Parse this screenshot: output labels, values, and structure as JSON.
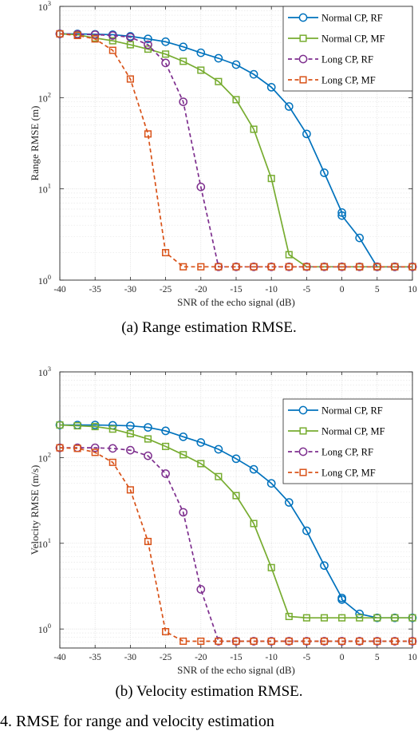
{
  "figure": {
    "caption_a": "(a)  Range estimation RMSE.",
    "caption_b": "(b)  Velocity estimation RMSE.",
    "bottom_text": "4.  RMSE  for  range  and  velocity  estimation"
  },
  "colors": {
    "normal_rf": "#0072BD",
    "normal_mf": "#77AC30",
    "long_rf": "#7E2F8E",
    "long_mf": "#D95319",
    "grid": "#dcdcdc"
  },
  "chart_data": [
    {
      "id": "range",
      "type": "line",
      "title": "",
      "xlabel": "SNR of the echo signal (dB)",
      "ylabel": "Range RMSE (m)",
      "xlim": [
        -40,
        10
      ],
      "ylim": [
        1,
        1000
      ],
      "yscale": "log",
      "grid": true,
      "legend_position": "top-right",
      "x_ticks": [
        -40,
        -35,
        -30,
        -25,
        -20,
        -15,
        -10,
        -5,
        0,
        5,
        10
      ],
      "x_tick_labels": [
        "-40",
        "-35",
        "-30",
        "-25",
        "-20",
        "-15",
        "-10",
        "-5",
        "0",
        "5",
        "10"
      ],
      "y_ticks": [
        1,
        10,
        100,
        1000
      ],
      "y_tick_labels": [
        [
          "10",
          "0"
        ],
        [
          "10",
          "1"
        ],
        [
          "10",
          "2"
        ],
        [
          "10",
          "3"
        ]
      ],
      "series": [
        {
          "name": "Normal CP, RF",
          "color_key": "normal_rf",
          "marker": "circle",
          "dash": false,
          "x": [
            -40,
            -37.5,
            -35,
            -32.5,
            -30,
            -27.5,
            -25,
            -22.5,
            -20,
            -17.5,
            -15,
            -12.5,
            -10,
            -7.5,
            -5,
            -2.5,
            0,
            0,
            2.5,
            5,
            7.5,
            10
          ],
          "y": [
            500,
            500,
            495,
            490,
            470,
            440,
            410,
            360,
            310,
            270,
            230,
            180,
            130,
            80,
            40,
            15,
            5.5,
            5.1,
            2.9,
            1.4,
            1.4,
            1.4
          ]
        },
        {
          "name": "Normal CP, MF",
          "color_key": "normal_mf",
          "marker": "square",
          "dash": false,
          "x": [
            -40,
            -37.5,
            -35,
            -32.5,
            -30,
            -27.5,
            -25,
            -22.5,
            -20,
            -17.5,
            -15,
            -12.5,
            -10,
            -7.5,
            -5,
            -2.5,
            0,
            2.5,
            5,
            7.5,
            10
          ],
          "y": [
            500,
            490,
            450,
            420,
            380,
            340,
            300,
            250,
            200,
            150,
            95,
            45,
            13,
            1.9,
            1.4,
            1.4,
            1.4,
            1.4,
            1.4,
            1.4,
            1.4
          ]
        },
        {
          "name": "Long CP, RF",
          "color_key": "long_rf",
          "marker": "circle",
          "dash": true,
          "x": [
            -40,
            -37.5,
            -35,
            -32.5,
            -30,
            -27.5,
            -25,
            -22.5,
            -20,
            -17.5,
            -15,
            -12.5,
            -10,
            -7.5,
            -5,
            -2.5,
            0,
            2.5,
            5,
            7.5,
            10
          ],
          "y": [
            500,
            495,
            490,
            480,
            460,
            380,
            240,
            90,
            10.5,
            1.4,
            1.4,
            1.4,
            1.4,
            1.4,
            1.4,
            1.4,
            1.4,
            1.4,
            1.4,
            1.4,
            1.4
          ]
        },
        {
          "name": "Long CP, MF",
          "color_key": "long_mf",
          "marker": "square",
          "dash": true,
          "x": [
            -40,
            -37.5,
            -35,
            -32.5,
            -30,
            -27.5,
            -25,
            -22.5,
            -20,
            -17.5,
            -15,
            -12.5,
            -10,
            -7.5,
            -5,
            -2.5,
            0,
            2.5,
            5,
            7.5,
            10
          ],
          "y": [
            500,
            480,
            440,
            330,
            160,
            40,
            2,
            1.4,
            1.4,
            1.4,
            1.4,
            1.4,
            1.4,
            1.4,
            1.4,
            1.4,
            1.4,
            1.4,
            1.4,
            1.4,
            1.4
          ]
        }
      ]
    },
    {
      "id": "velocity",
      "type": "line",
      "title": "",
      "xlabel": "SNR of the echo signal (dB)",
      "ylabel": "Velocity RMSE (m/s)",
      "xlim": [
        -40,
        10
      ],
      "ylim": [
        0.6,
        1000
      ],
      "yscale": "log",
      "grid": true,
      "legend_position": "top-right",
      "x_ticks": [
        -40,
        -35,
        -30,
        -25,
        -20,
        -15,
        -10,
        -5,
        0,
        5,
        10
      ],
      "x_tick_labels": [
        "-40",
        "-35",
        "-30",
        "-25",
        "-20",
        "-15",
        "-10",
        "-5",
        "0",
        "5",
        "10"
      ],
      "y_ticks": [
        1,
        10,
        100,
        1000
      ],
      "y_tick_labels": [
        [
          "10",
          "0"
        ],
        [
          "10",
          "1"
        ],
        [
          "10",
          "2"
        ],
        [
          "10",
          "3"
        ]
      ],
      "series": [
        {
          "name": "Normal CP, RF",
          "color_key": "normal_rf",
          "marker": "circle",
          "dash": false,
          "x": [
            -40,
            -37.5,
            -35,
            -32.5,
            -30,
            -27.5,
            -25,
            -22.5,
            -20,
            -17.5,
            -15,
            -12.5,
            -10,
            -7.5,
            -5,
            -2.5,
            0,
            0,
            2.5,
            5,
            7.5,
            10
          ],
          "y": [
            240,
            240,
            240,
            238,
            235,
            225,
            205,
            175,
            150,
            125,
            97,
            73,
            50,
            30,
            14,
            5.5,
            2.3,
            2.2,
            1.5,
            1.35,
            1.35,
            1.35
          ]
        },
        {
          "name": "Normal CP, MF",
          "color_key": "normal_mf",
          "marker": "square",
          "dash": false,
          "x": [
            -40,
            -37.5,
            -35,
            -32.5,
            -30,
            -27.5,
            -25,
            -22.5,
            -20,
            -17.5,
            -15,
            -12.5,
            -10,
            -7.5,
            -5,
            -2.5,
            0,
            2.5,
            5,
            7.5,
            10
          ],
          "y": [
            240,
            235,
            230,
            215,
            190,
            165,
            135,
            108,
            85,
            60,
            36,
            17,
            5.2,
            1.4,
            1.35,
            1.35,
            1.35,
            1.35,
            1.35,
            1.35,
            1.35
          ]
        },
        {
          "name": "Long CP, RF",
          "color_key": "long_rf",
          "marker": "circle",
          "dash": true,
          "x": [
            -40,
            -37.5,
            -35,
            -32.5,
            -30,
            -27.5,
            -25,
            -22.5,
            -20,
            -17.5,
            -15,
            -12.5,
            -10,
            -7.5,
            -5,
            -2.5,
            0,
            2.5,
            5,
            7.5,
            10
          ],
          "y": [
            130,
            130,
            130,
            128,
            122,
            105,
            65,
            23,
            2.9,
            0.72,
            0.72,
            0.72,
            0.72,
            0.72,
            0.72,
            0.72,
            0.72,
            0.72,
            0.72,
            0.72,
            0.72
          ]
        },
        {
          "name": "Long CP, MF",
          "color_key": "long_mf",
          "marker": "square",
          "dash": true,
          "x": [
            -40,
            -37.5,
            -35,
            -32.5,
            -30,
            -27.5,
            -25,
            -22.5,
            -20,
            -17.5,
            -15,
            -12.5,
            -10,
            -7.5,
            -5,
            -2.5,
            0,
            2.5,
            5,
            7.5,
            10
          ],
          "y": [
            130,
            128,
            115,
            88,
            42,
            10.5,
            0.93,
            0.72,
            0.72,
            0.72,
            0.72,
            0.72,
            0.72,
            0.72,
            0.72,
            0.72,
            0.72,
            0.72,
            0.72,
            0.72,
            0.72
          ]
        }
      ]
    }
  ]
}
